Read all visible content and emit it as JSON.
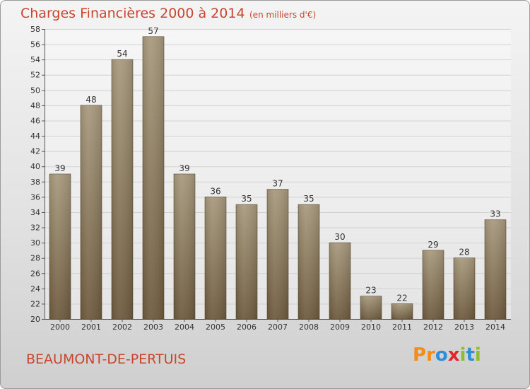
{
  "header": {
    "title": "Charges Financières 2000 à 2014",
    "unit": "(en milliers d'€)"
  },
  "footer": {
    "commune": "BEAUMONT-DE-PERTUIS",
    "brand": "Proxiti"
  },
  "colors": {
    "title": "#c8462d",
    "bar_top": "#a89a7e",
    "bar_bottom": "#6e5b3e",
    "brand_orange": "#f28c1c",
    "brand_blue": "#2e8fd6",
    "brand_green": "#8cbd2a",
    "brand_red": "#e2262c"
  },
  "chart_data": {
    "type": "bar",
    "categories": [
      "2000",
      "2001",
      "2002",
      "2003",
      "2004",
      "2005",
      "2006",
      "2007",
      "2008",
      "2009",
      "2010",
      "2011",
      "2012",
      "2013",
      "2014"
    ],
    "values": [
      39,
      48,
      54,
      57,
      39,
      36,
      35,
      37,
      35,
      30,
      23,
      22,
      29,
      28,
      33
    ],
    "ylim": [
      20,
      58
    ],
    "yticks": [
      20,
      22,
      24,
      26,
      28,
      30,
      32,
      34,
      36,
      38,
      40,
      42,
      44,
      46,
      48,
      50,
      52,
      54,
      56,
      58
    ],
    "grid": true,
    "data_labels": true
  }
}
